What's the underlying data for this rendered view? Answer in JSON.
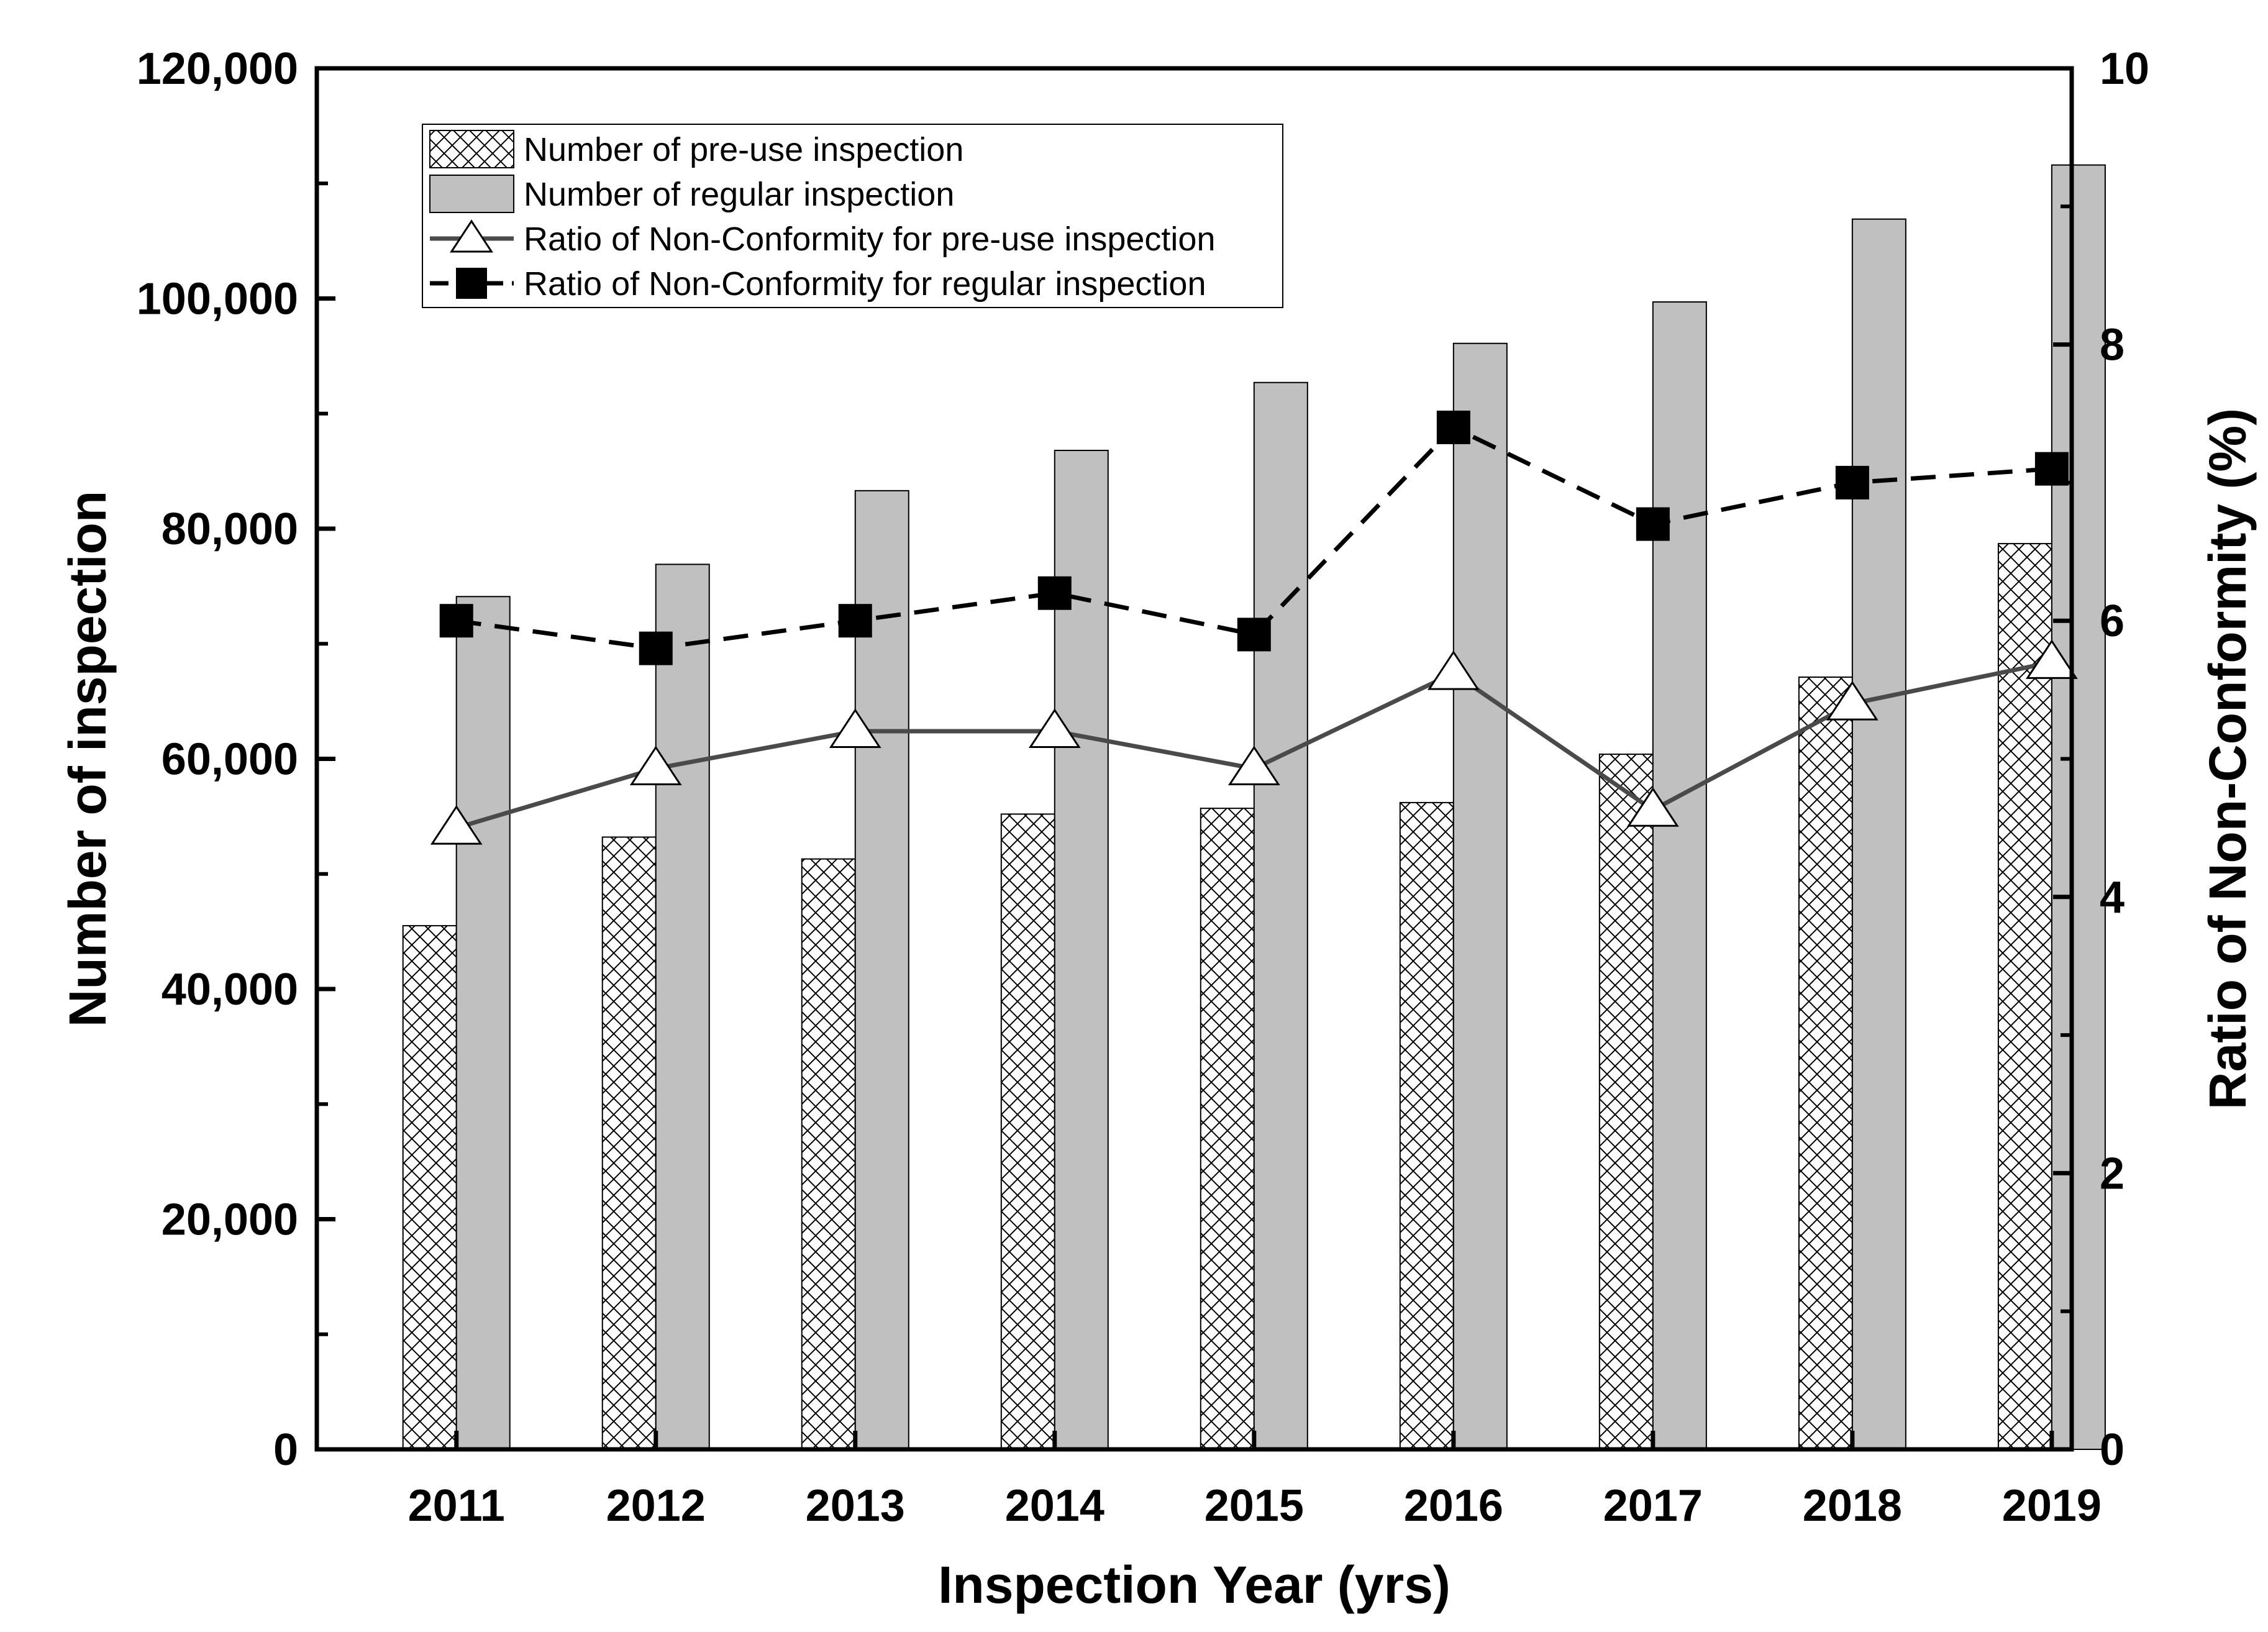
{
  "chart_data": {
    "type": "bar",
    "title": "",
    "xlabel": "Inspection Year (yrs)",
    "ylabel": "Number of inspection",
    "y2label": "Ratio of Non-Conformity (%)",
    "categories": [
      "2011",
      "2012",
      "2013",
      "2014",
      "2015",
      "2016",
      "2017",
      "2018",
      "2019"
    ],
    "ylim": [
      0,
      120000
    ],
    "y2lim": [
      0,
      10
    ],
    "y_ticks": [
      0,
      20000,
      40000,
      60000,
      80000,
      100000,
      120000
    ],
    "y_tick_labels": [
      "0",
      "20,000",
      "40,000",
      "60,000",
      "80,000",
      "100,000",
      "120,000"
    ],
    "y2_ticks": [
      0,
      2,
      4,
      6,
      8,
      10
    ],
    "y2_tick_labels": [
      "0",
      "2",
      "4",
      "6",
      "8",
      "10"
    ],
    "grid": false,
    "legend_position": "top-left",
    "series": [
      {
        "name": "Number of pre-use inspection",
        "kind": "bar",
        "axis": "left",
        "pattern": "crosshatch",
        "values": [
          45500,
          53200,
          51300,
          55200,
          55700,
          56200,
          60400,
          67100,
          78700
        ]
      },
      {
        "name": "Number of regular inspection",
        "kind": "bar",
        "axis": "left",
        "color": "#c0c0c0",
        "values": [
          74100,
          76900,
          83300,
          86800,
          92700,
          96100,
          99700,
          106900,
          111600
        ]
      },
      {
        "name": "Ratio of Non-Conformity for pre-use inspection",
        "kind": "line",
        "axis": "right",
        "marker": "open-triangle",
        "color": "#4a4a4a",
        "values": [
          4.5,
          4.93,
          5.2,
          5.2,
          4.93,
          5.62,
          4.63,
          5.4,
          5.7
        ]
      },
      {
        "name": "Ratio of Non-Conformity for regular inspection",
        "kind": "line",
        "axis": "right",
        "marker": "filled-square",
        "dash": "dashed",
        "color": "#000000",
        "values": [
          6.0,
          5.8,
          6.0,
          6.2,
          5.9,
          7.4,
          6.7,
          7.0,
          7.1
        ]
      }
    ]
  }
}
